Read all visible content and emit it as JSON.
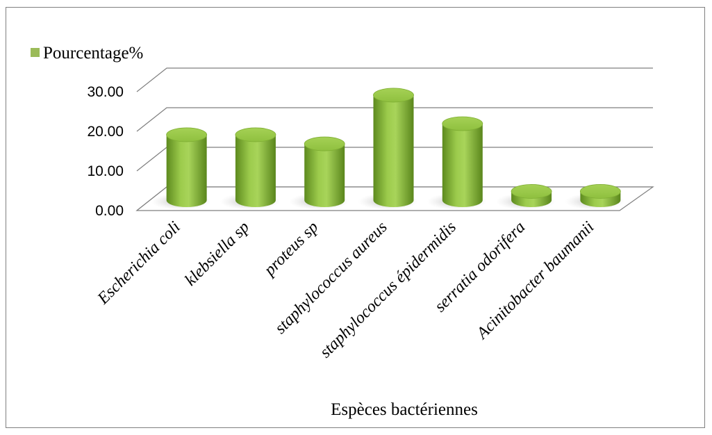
{
  "chart_data": {
    "type": "bar",
    "style": "3d-cylinder",
    "categories": [
      "Escherichia coli",
      "klebsiella sp",
      "proteus sp",
      "staphylococcus aureus",
      "staphylococcus épidermidis",
      "serratia odorifera",
      "Acinitobacter baumanii"
    ],
    "series": [
      {
        "name": "Pourcentage%",
        "values": [
          16.5,
          16.5,
          14.2,
          26.5,
          19.3,
          2.2,
          2.2
        ]
      }
    ],
    "yticks": [
      "0.00",
      "10.00",
      "20.00",
      "30.00"
    ],
    "ylim": [
      0,
      30
    ],
    "xlabel": "Espèces bactériennes",
    "ylabel": "",
    "grid": true,
    "legend_position": "top-left",
    "colors": {
      "bar": "#8dbd3c",
      "bar_dark": "#55801a",
      "bar_light": "#b9dc74",
      "bar_top": "#9cca4a",
      "grid": "#7f7f7f",
      "legend_swatch": "#9bbb59"
    }
  }
}
